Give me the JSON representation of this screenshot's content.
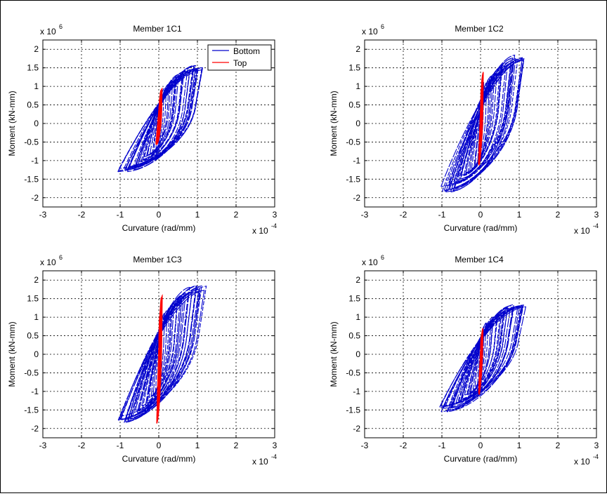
{
  "figure": {
    "background": "#ffffff"
  },
  "chart_data": [
    {
      "type": "line",
      "title": "Member 1C1",
      "xlabel": "Curvature (rad/mm)",
      "ylabel": "Moment (kN-mm)",
      "x_exponent": "x 10",
      "x_exponent_power": "-4",
      "y_exponent": "x 10",
      "y_exponent_power": "6",
      "xlim": [
        -3,
        3
      ],
      "ylim": [
        -2.25,
        2.25
      ],
      "xticks": [
        "-3",
        "-2",
        "-1",
        "0",
        "1",
        "2",
        "3"
      ],
      "yticks": [
        "2",
        "1.5",
        "1",
        "0.5",
        "0",
        "-0.5",
        "-1",
        "-1.5",
        "-2"
      ],
      "grid": true,
      "legend": {
        "position": "top-right",
        "entries": [
          "Bottom",
          "Top"
        ]
      },
      "series": [
        {
          "name": "Bottom",
          "color": "#0000cc",
          "style": "dashed",
          "envelope": {
            "phi_min": -1.1,
            "phi_max": 1.25,
            "m_max": 1.6,
            "m_min": -1.3,
            "cycles": 26
          }
        },
        {
          "name": "Top",
          "color": "#ff0000",
          "style": "solid",
          "envelope": {
            "phi_min": -0.08,
            "phi_max": 0.1,
            "m_max": 1.0,
            "m_min": -0.6,
            "cycles": 6
          }
        }
      ]
    },
    {
      "type": "line",
      "title": "Member 1C2",
      "xlabel": "Curvature (rad/mm)",
      "ylabel": "Moment (kN-mm)",
      "x_exponent": "x 10",
      "x_exponent_power": "-4",
      "y_exponent": "x 10",
      "y_exponent_power": "6",
      "xlim": [
        -3,
        3
      ],
      "ylim": [
        -2.25,
        2.25
      ],
      "xticks": [
        "-3",
        "-2",
        "-1",
        "0",
        "1",
        "2",
        "3"
      ],
      "yticks": [
        "2",
        "1.5",
        "1",
        "0.5",
        "0",
        "-0.5",
        "-1",
        "-1.5",
        "-2"
      ],
      "grid": true,
      "series": [
        {
          "name": "Bottom",
          "color": "#0000cc",
          "style": "dashed",
          "envelope": {
            "phi_min": -1.1,
            "phi_max": 1.3,
            "m_max": 1.87,
            "m_min": -1.85,
            "cycles": 26
          }
        },
        {
          "name": "Top",
          "color": "#ff0000",
          "style": "solid",
          "envelope": {
            "phi_min": -0.06,
            "phi_max": 0.08,
            "m_max": 1.4,
            "m_min": -1.2,
            "cycles": 6
          }
        }
      ]
    },
    {
      "type": "line",
      "title": "Member 1C3",
      "xlabel": "Curvature (rad/mm)",
      "ylabel": "Moment (kN-mm)",
      "x_exponent": "x 10",
      "x_exponent_power": "-4",
      "y_exponent": "x 10",
      "y_exponent_power": "6",
      "xlim": [
        -3,
        3
      ],
      "ylim": [
        -2.25,
        2.25
      ],
      "xticks": [
        "-3",
        "-2",
        "-1",
        "0",
        "1",
        "2",
        "3"
      ],
      "yticks": [
        "2",
        "1.5",
        "1",
        "0.5",
        "0",
        "-0.5",
        "-1",
        "-1.5",
        "-2"
      ],
      "grid": true,
      "series": [
        {
          "name": "Bottom",
          "color": "#0000cc",
          "style": "dashed",
          "envelope": {
            "phi_min": -1.15,
            "phi_max": 1.3,
            "m_max": 1.85,
            "m_min": -1.85,
            "cycles": 26
          }
        },
        {
          "name": "Top",
          "color": "#ff0000",
          "style": "solid",
          "envelope": {
            "phi_min": -0.06,
            "phi_max": 0.1,
            "m_max": 1.6,
            "m_min": -1.9,
            "cycles": 6
          }
        }
      ]
    },
    {
      "type": "line",
      "title": "Member 1C4",
      "xlabel": "Curvature (rad/mm)",
      "ylabel": "Moment (kN-mm)",
      "x_exponent": "x 10",
      "x_exponent_power": "-4",
      "y_exponent": "x 10",
      "y_exponent_power": "6",
      "xlim": [
        -3,
        3
      ],
      "ylim": [
        -2.25,
        2.25
      ],
      "xticks": [
        "-3",
        "-2",
        "-1",
        "0",
        "1",
        "2",
        "3"
      ],
      "yticks": [
        "2",
        "1.5",
        "1",
        "0.5",
        "0",
        "-0.5",
        "-1",
        "-1.5",
        "-2"
      ],
      "grid": true,
      "series": [
        {
          "name": "Bottom",
          "color": "#0000cc",
          "style": "dashed",
          "envelope": {
            "phi_min": -1.15,
            "phi_max": 1.25,
            "m_max": 1.37,
            "m_min": -1.55,
            "cycles": 26
          }
        },
        {
          "name": "Top",
          "color": "#ff0000",
          "style": "solid",
          "envelope": {
            "phi_min": -0.05,
            "phi_max": 0.07,
            "m_max": 0.7,
            "m_min": -1.1,
            "cycles": 6
          }
        }
      ]
    }
  ]
}
